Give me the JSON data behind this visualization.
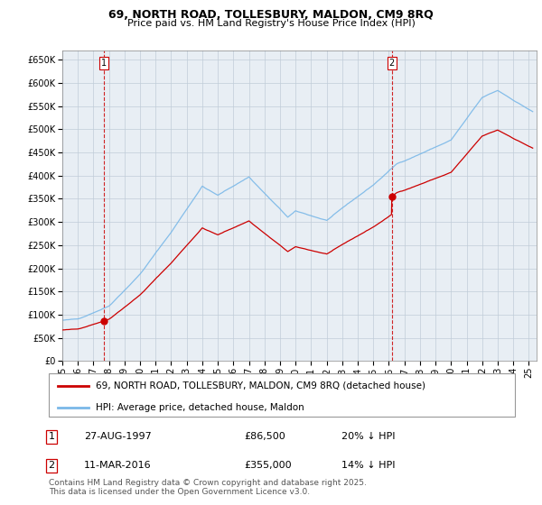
{
  "title_line1": "69, NORTH ROAD, TOLLESBURY, MALDON, CM9 8RQ",
  "title_line2": "Price paid vs. HM Land Registry's House Price Index (HPI)",
  "legend_entry1": "69, NORTH ROAD, TOLLESBURY, MALDON, CM9 8RQ (detached house)",
  "legend_entry2": "HPI: Average price, detached house, Maldon",
  "annotation1_label": "1",
  "annotation1_date": "27-AUG-1997",
  "annotation1_price": "£86,500",
  "annotation1_hpi": "20% ↓ HPI",
  "annotation1_year": 1997.646,
  "annotation1_value": 86500,
  "annotation2_label": "2",
  "annotation2_date": "11-MAR-2016",
  "annotation2_price": "£355,000",
  "annotation2_hpi": "14% ↓ HPI",
  "annotation2_year": 2016.19,
  "annotation2_value": 355000,
  "hpi_color": "#7ab8e8",
  "price_color": "#cc0000",
  "annotation_color": "#cc0000",
  "bg_color": "#e8eef4",
  "grid_color": "#c0ccd8",
  "ylim": [
    0,
    670000
  ],
  "xlim_start": 1995.0,
  "xlim_end": 2025.5,
  "ytick_vals": [
    0,
    50000,
    100000,
    150000,
    200000,
    250000,
    300000,
    350000,
    400000,
    450000,
    500000,
    550000,
    600000,
    650000
  ],
  "footer_text": "Contains HM Land Registry data © Crown copyright and database right 2025.\nThis data is licensed under the Open Government Licence v3.0."
}
